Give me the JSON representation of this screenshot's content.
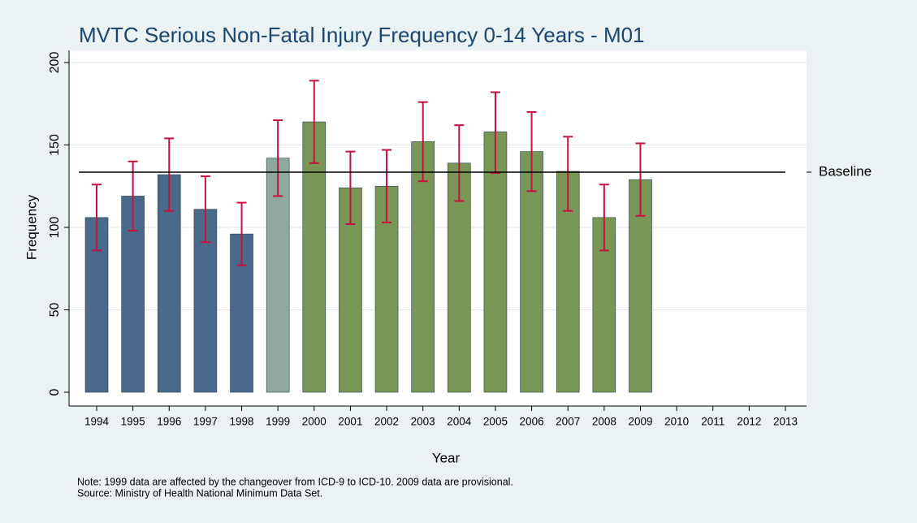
{
  "chart_data": {
    "type": "bar",
    "title": "MVTC Serious Non-Fatal Injury Frequency 0-14 Years - M01",
    "x_label": "Year",
    "y_label": "Frequency",
    "notes": [
      "Note: 1999 data are affected by the changeover from ICD-9 to ICD-10. 2009 data are provisional.",
      "Source: Ministry of Health National Minimum Data Set."
    ],
    "categories": [
      "1994",
      "1995",
      "1996",
      "1997",
      "1998",
      "1999",
      "2000",
      "2001",
      "2002",
      "2003",
      "2004",
      "2005",
      "2006",
      "2007",
      "2008",
      "2009",
      "2010",
      "2011",
      "2012",
      "2013"
    ],
    "values": [
      106,
      119,
      132,
      111,
      96,
      142,
      164,
      124,
      125,
      152,
      139,
      158,
      146,
      134,
      106,
      129,
      null,
      null,
      null,
      null
    ],
    "ci_low": [
      86,
      98,
      110,
      91,
      77,
      119,
      139,
      102,
      103,
      128,
      116,
      133,
      122,
      110,
      86,
      107,
      null,
      null,
      null,
      null
    ],
    "ci_high": [
      126,
      140,
      154,
      131,
      115,
      165,
      189,
      146,
      147,
      176,
      162,
      182,
      170,
      155,
      126,
      151,
      null,
      null,
      null,
      null
    ],
    "colors": [
      "#4a6a8b",
      "#4a6a8b",
      "#4a6a8b",
      "#4a6a8b",
      "#4a6a8b",
      "#8ea89e",
      "#7a9656",
      "#7a9656",
      "#7a9656",
      "#7a9656",
      "#7a9656",
      "#7a9656",
      "#7a9656",
      "#7a9656",
      "#7a9656",
      "#7a9656",
      null,
      null,
      null,
      null
    ],
    "error_color": "#c8103e",
    "baseline": {
      "value": 133.5,
      "label": "Baseline"
    },
    "ylim": [
      0,
      200
    ],
    "yticks": [
      0,
      50,
      100,
      150,
      200
    ],
    "grid": true
  }
}
